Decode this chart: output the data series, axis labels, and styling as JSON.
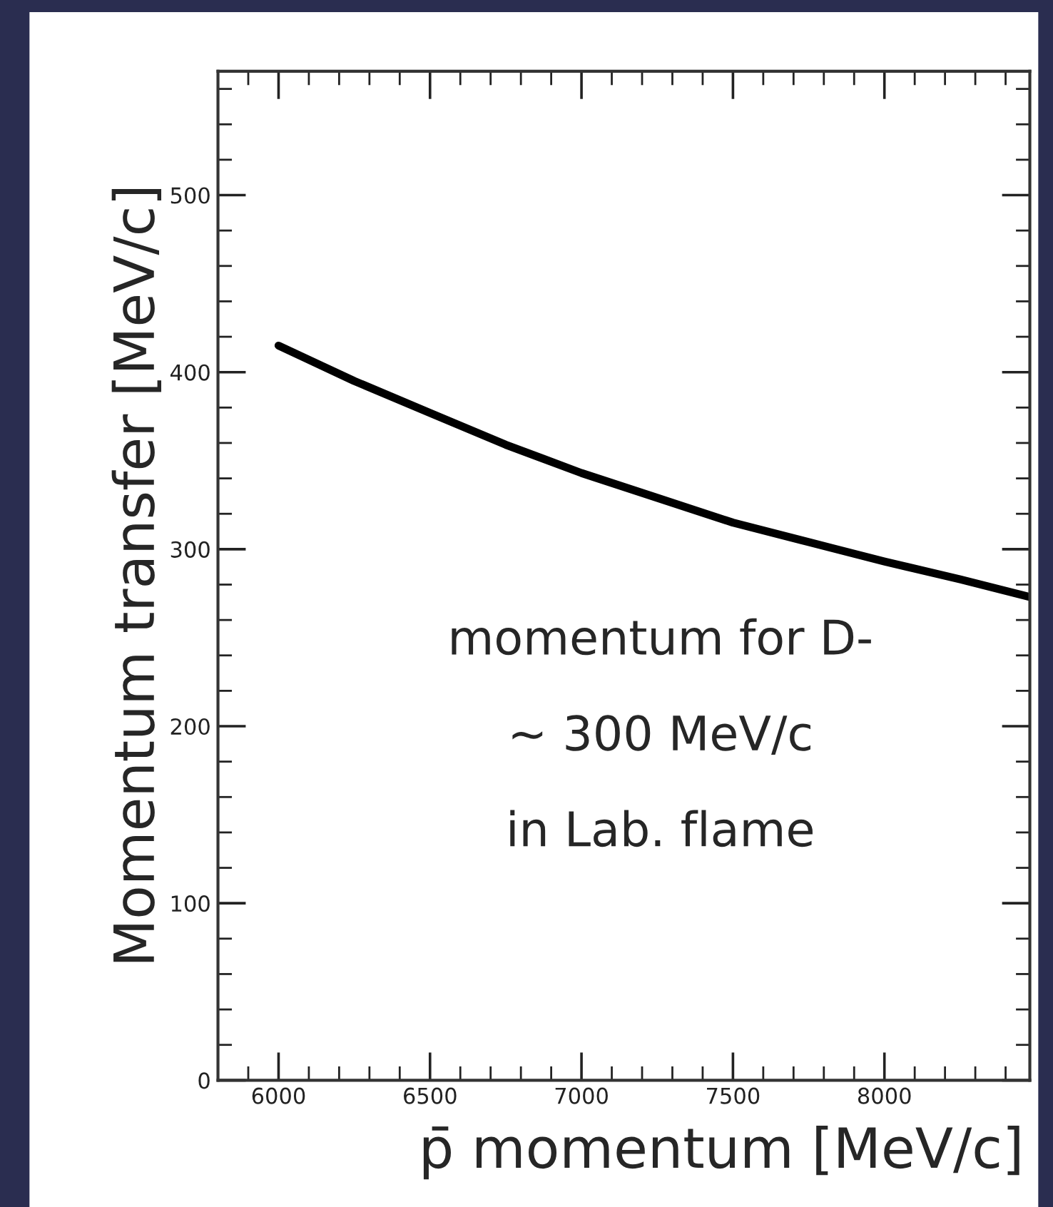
{
  "chart_data": {
    "type": "line",
    "xlabel": "p̄ momentum [MeV/c]",
    "ylabel": "Momentum transfer [MeV/c]",
    "x": [
      6000,
      6250,
      6500,
      6750,
      7000,
      7250,
      7500,
      7750,
      8000,
      8250,
      8480
    ],
    "series": [
      {
        "color": "#000000",
        "values": [
          415,
          395,
          377,
          359,
          343,
          329,
          315,
          304,
          293,
          283,
          273
        ]
      }
    ],
    "xlim": [
      5800,
      8480
    ],
    "xticks": [
      6000,
      6500,
      7000,
      7500,
      8000
    ],
    "ylim": [
      0,
      570
    ],
    "yticks": [
      0,
      100,
      200,
      300,
      400,
      500
    ],
    "grid": false,
    "legend": false,
    "marker": "none",
    "line_style": "solid",
    "annotations": [
      "momentum for D-",
      "~ 300 MeV/c",
      "in Lab. flame"
    ]
  }
}
